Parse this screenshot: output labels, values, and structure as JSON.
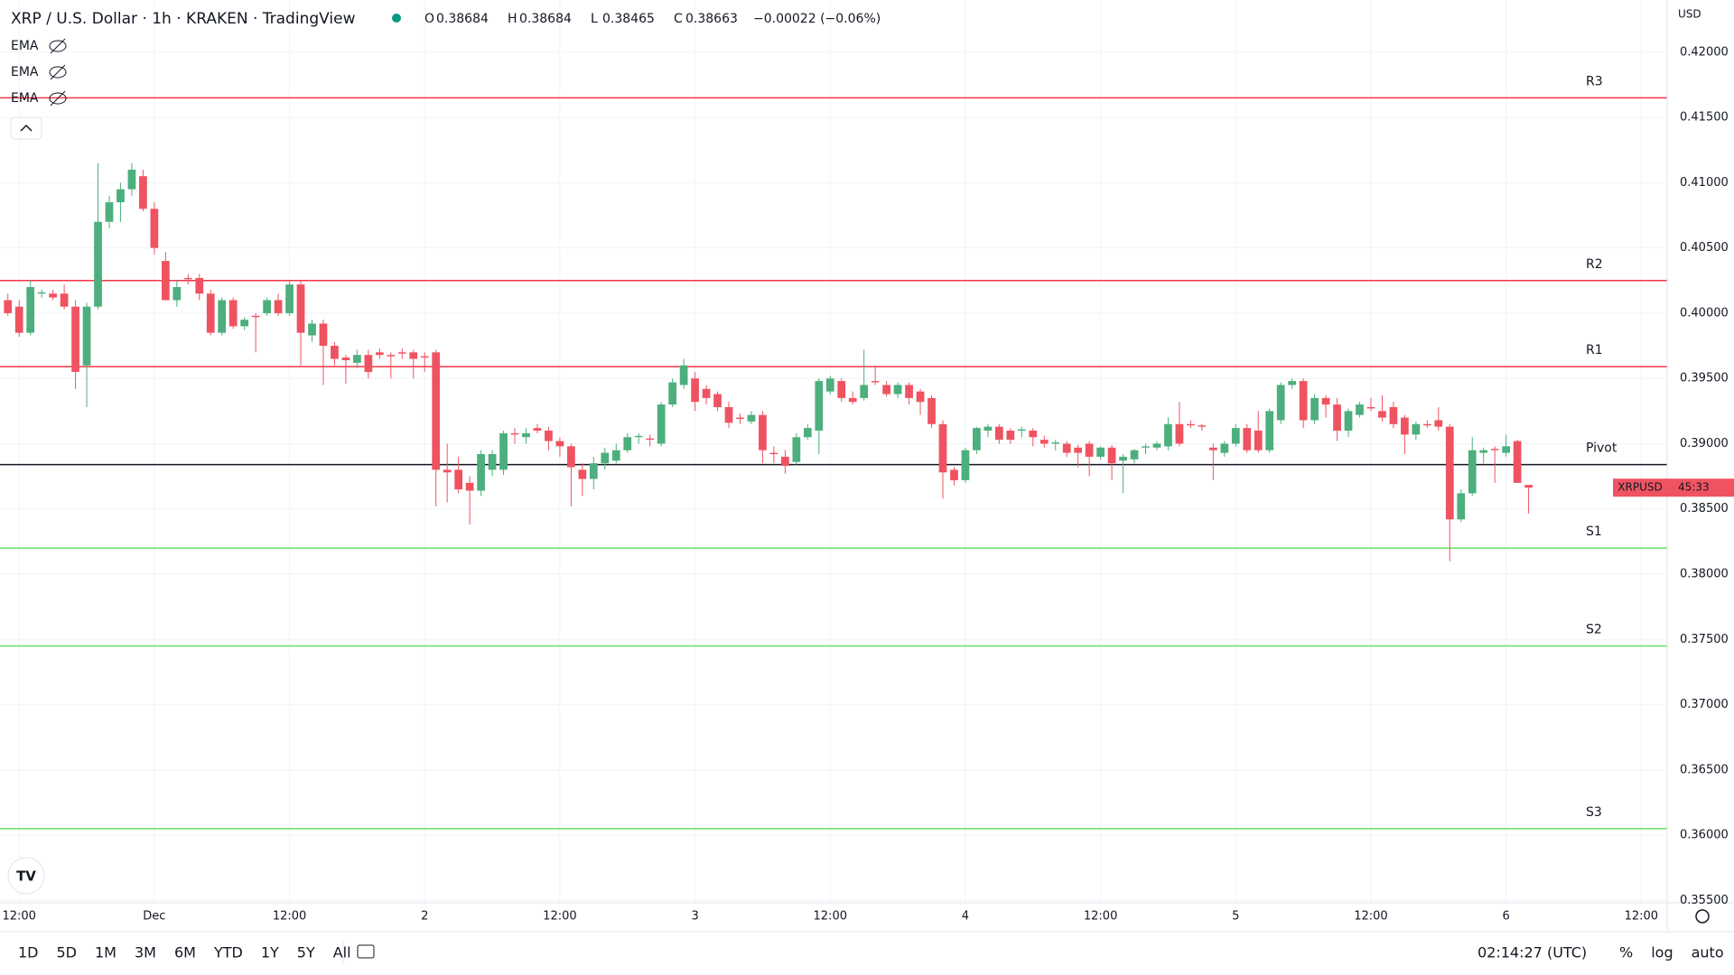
{
  "header": {
    "symbol": "XRP / U.S. Dollar · 1h · KRAKEN · TradingView",
    "ohlc": [
      {
        "label": "O",
        "value": "0.38684"
      },
      {
        "label": "H",
        "value": "0.38684"
      },
      {
        "label": "L",
        "value": "0.38465"
      },
      {
        "label": "C",
        "value": "0.38663"
      }
    ],
    "change": "−0.00022 (−0.06%)",
    "indicators": [
      "EMA",
      "EMA",
      "EMA"
    ]
  },
  "chart_data": {
    "type": "candlestick",
    "currency": "USD",
    "symbol_tag": "XRPUSD",
    "countdown": "45:33",
    "up_color": "#4caf7d",
    "down_color": "#ef5361",
    "grid": true,
    "xlim": [
      -0.7,
      147.3
    ],
    "xticks": [
      {
        "value": 1,
        "label": "12:00"
      },
      {
        "value": 13,
        "label": "Dec"
      },
      {
        "value": 25,
        "label": "12:00"
      },
      {
        "value": 37,
        "label": "2"
      },
      {
        "value": 49,
        "label": "12:00"
      },
      {
        "value": 61,
        "label": "3"
      },
      {
        "value": 73,
        "label": "12:00"
      },
      {
        "value": 85,
        "label": "4"
      },
      {
        "value": 97,
        "label": "12:00"
      },
      {
        "value": 109,
        "label": "5"
      },
      {
        "value": 121,
        "label": "12:00"
      },
      {
        "value": 133,
        "label": "6"
      },
      {
        "value": 145,
        "label": "12:00"
      }
    ],
    "ylim": [
      0.35482,
      0.424
    ],
    "yticks": [
      {
        "value": 0.355,
        "label": "0.35500"
      },
      {
        "value": 0.36,
        "label": "0.36000"
      },
      {
        "value": 0.365,
        "label": "0.36500"
      },
      {
        "value": 0.37,
        "label": "0.37000"
      },
      {
        "value": 0.375,
        "label": "0.37500"
      },
      {
        "value": 0.38,
        "label": "0.38000"
      },
      {
        "value": 0.385,
        "label": "0.38500"
      },
      {
        "value": 0.39,
        "label": "0.39000"
      },
      {
        "value": 0.395,
        "label": "0.39500"
      },
      {
        "value": 0.4,
        "label": "0.40000"
      },
      {
        "value": 0.405,
        "label": "0.40500"
      },
      {
        "value": 0.41,
        "label": "0.41000"
      },
      {
        "value": 0.415,
        "label": "0.41500"
      },
      {
        "value": 0.42,
        "label": "0.42000"
      }
    ],
    "levels": [
      {
        "name": "R3",
        "value": 0.4165,
        "color": "#f23645"
      },
      {
        "name": "R2",
        "value": 0.4025,
        "color": "#f23645"
      },
      {
        "name": "R1",
        "value": 0.3959,
        "color": "#f23645"
      },
      {
        "name": "Pivot",
        "value": 0.3884,
        "color": "#131722"
      },
      {
        "name": "S1",
        "value": 0.382,
        "color": "#66dd66"
      },
      {
        "name": "S2",
        "value": 0.3745,
        "color": "#66dd66"
      },
      {
        "name": "S3",
        "value": 0.3605,
        "color": "#66dd66"
      }
    ],
    "candles": [
      [
        0.401,
        0.4015,
        0.3998,
        0.4
      ],
      [
        0.4005,
        0.401,
        0.3982,
        0.3985
      ],
      [
        0.3985,
        0.4025,
        0.3983,
        0.402
      ],
      [
        0.4015,
        0.4018,
        0.4012,
        0.4016
      ],
      [
        0.4015,
        0.4018,
        0.401,
        0.4012
      ],
      [
        0.4015,
        0.4022,
        0.4003,
        0.4005
      ],
      [
        0.4005,
        0.401,
        0.3942,
        0.3955
      ],
      [
        0.396,
        0.4008,
        0.3928,
        0.4005
      ],
      [
        0.4005,
        0.4115,
        0.4003,
        0.407
      ],
      [
        0.407,
        0.409,
        0.4065,
        0.4085
      ],
      [
        0.4085,
        0.41,
        0.407,
        0.4095
      ],
      [
        0.4095,
        0.4115,
        0.409,
        0.411
      ],
      [
        0.4105,
        0.411,
        0.4078,
        0.408
      ],
      [
        0.408,
        0.4085,
        0.4045,
        0.405
      ],
      [
        0.404,
        0.4047,
        0.401,
        0.401
      ],
      [
        0.401,
        0.4025,
        0.4005,
        0.402
      ],
      [
        0.4027,
        0.403,
        0.4022,
        0.4026
      ],
      [
        0.4027,
        0.403,
        0.401,
        0.4015
      ],
      [
        0.4015,
        0.4018,
        0.3983,
        0.3985
      ],
      [
        0.3985,
        0.4012,
        0.3983,
        0.401
      ],
      [
        0.401,
        0.4012,
        0.3988,
        0.399
      ],
      [
        0.399,
        0.3997,
        0.3987,
        0.3995
      ],
      [
        0.3998,
        0.4,
        0.397,
        0.3997
      ],
      [
        0.4,
        0.4012,
        0.3998,
        0.401
      ],
      [
        0.401,
        0.4015,
        0.3998,
        0.4
      ],
      [
        0.4,
        0.4025,
        0.3998,
        0.4022
      ],
      [
        0.4022,
        0.4025,
        0.396,
        0.3985
      ],
      [
        0.3983,
        0.3995,
        0.3978,
        0.3992
      ],
      [
        0.3992,
        0.3995,
        0.3945,
        0.3975
      ],
      [
        0.3975,
        0.3978,
        0.396,
        0.3965
      ],
      [
        0.3966,
        0.3968,
        0.3946,
        0.3964
      ],
      [
        0.3962,
        0.3972,
        0.3958,
        0.3968
      ],
      [
        0.3968,
        0.3972,
        0.395,
        0.3955
      ],
      [
        0.397,
        0.3973,
        0.3965,
        0.3968
      ],
      [
        0.3968,
        0.397,
        0.395,
        0.3967
      ],
      [
        0.397,
        0.3973,
        0.3965,
        0.3969
      ],
      [
        0.397,
        0.3972,
        0.395,
        0.3965
      ],
      [
        0.3967,
        0.397,
        0.3955,
        0.3966
      ],
      [
        0.397,
        0.3972,
        0.3852,
        0.388
      ],
      [
        0.388,
        0.39,
        0.3855,
        0.3878
      ],
      [
        0.388,
        0.389,
        0.3862,
        0.3865
      ],
      [
        0.387,
        0.3875,
        0.3838,
        0.3864
      ],
      [
        0.3864,
        0.3895,
        0.386,
        0.3892
      ],
      [
        0.388,
        0.3895,
        0.3875,
        0.3892
      ],
      [
        0.388,
        0.391,
        0.3876,
        0.3908
      ],
      [
        0.3908,
        0.3912,
        0.39,
        0.3907
      ],
      [
        0.3905,
        0.3912,
        0.39,
        0.3908
      ],
      [
        0.3912,
        0.3915,
        0.3908,
        0.391
      ],
      [
        0.391,
        0.3913,
        0.3895,
        0.3902
      ],
      [
        0.3902,
        0.3905,
        0.389,
        0.3898
      ],
      [
        0.3898,
        0.39,
        0.3852,
        0.3882
      ],
      [
        0.388,
        0.3885,
        0.386,
        0.3873
      ],
      [
        0.3873,
        0.389,
        0.3865,
        0.3885
      ],
      [
        0.3885,
        0.3897,
        0.388,
        0.3893
      ],
      [
        0.3887,
        0.39,
        0.3885,
        0.3895
      ],
      [
        0.3895,
        0.3908,
        0.3893,
        0.3905
      ],
      [
        0.3905,
        0.3908,
        0.39,
        0.3906
      ],
      [
        0.3904,
        0.3907,
        0.3898,
        0.3903
      ],
      [
        0.39,
        0.3932,
        0.3898,
        0.393
      ],
      [
        0.393,
        0.395,
        0.3928,
        0.3947
      ],
      [
        0.3945,
        0.3965,
        0.3942,
        0.396
      ],
      [
        0.395,
        0.3955,
        0.3925,
        0.3932
      ],
      [
        0.3942,
        0.3945,
        0.393,
        0.3935
      ],
      [
        0.3938,
        0.394,
        0.3925,
        0.3928
      ],
      [
        0.3928,
        0.3932,
        0.3912,
        0.3916
      ],
      [
        0.392,
        0.3923,
        0.3915,
        0.3919
      ],
      [
        0.3917,
        0.3925,
        0.3915,
        0.3922
      ],
      [
        0.3922,
        0.3925,
        0.3885,
        0.3895
      ],
      [
        0.3893,
        0.3898,
        0.3885,
        0.3892
      ],
      [
        0.389,
        0.3895,
        0.3877,
        0.3883
      ],
      [
        0.3886,
        0.3908,
        0.3884,
        0.3905
      ],
      [
        0.3905,
        0.3915,
        0.3903,
        0.3912
      ],
      [
        0.391,
        0.395,
        0.3892,
        0.3948
      ],
      [
        0.394,
        0.3952,
        0.3938,
        0.395
      ],
      [
        0.3948,
        0.395,
        0.3932,
        0.3935
      ],
      [
        0.3935,
        0.394,
        0.393,
        0.3932
      ],
      [
        0.3935,
        0.3972,
        0.3933,
        0.3945
      ],
      [
        0.3948,
        0.396,
        0.3945,
        0.3947
      ],
      [
        0.3945,
        0.3948,
        0.3936,
        0.3938
      ],
      [
        0.3938,
        0.3947,
        0.3935,
        0.3945
      ],
      [
        0.3945,
        0.3947,
        0.393,
        0.3935
      ],
      [
        0.394,
        0.3942,
        0.3922,
        0.3932
      ],
      [
        0.3935,
        0.3937,
        0.3912,
        0.3915
      ],
      [
        0.3915,
        0.3918,
        0.3858,
        0.3878
      ],
      [
        0.388,
        0.3882,
        0.3868,
        0.3872
      ],
      [
        0.3872,
        0.3897,
        0.387,
        0.3895
      ],
      [
        0.3895,
        0.3913,
        0.3892,
        0.3912
      ],
      [
        0.391,
        0.3915,
        0.3905,
        0.3913
      ],
      [
        0.3913,
        0.3915,
        0.39,
        0.3903
      ],
      [
        0.391,
        0.3912,
        0.39,
        0.3903
      ],
      [
        0.391,
        0.3913,
        0.3905,
        0.3911
      ],
      [
        0.391,
        0.3912,
        0.3898,
        0.3905
      ],
      [
        0.3903,
        0.3906,
        0.3897,
        0.39
      ],
      [
        0.39,
        0.3903,
        0.3895,
        0.3901
      ],
      [
        0.39,
        0.3902,
        0.389,
        0.3893
      ],
      [
        0.3897,
        0.3899,
        0.3882,
        0.3893
      ],
      [
        0.39,
        0.3902,
        0.3875,
        0.389
      ],
      [
        0.389,
        0.3898,
        0.3888,
        0.3897
      ],
      [
        0.3897,
        0.3899,
        0.3872,
        0.3885
      ],
      [
        0.3887,
        0.3892,
        0.3862,
        0.389
      ],
      [
        0.3888,
        0.3896,
        0.3885,
        0.3895
      ],
      [
        0.3897,
        0.39,
        0.3892,
        0.3898
      ],
      [
        0.3897,
        0.3902,
        0.3895,
        0.39
      ],
      [
        0.3898,
        0.392,
        0.3895,
        0.3915
      ],
      [
        0.3915,
        0.3932,
        0.3898,
        0.39
      ],
      [
        0.3915,
        0.3918,
        0.3912,
        0.3914
      ],
      [
        0.3914,
        0.3915,
        0.391,
        0.3913
      ],
      [
        0.3897,
        0.39,
        0.3872,
        0.3895
      ],
      [
        0.3893,
        0.3902,
        0.389,
        0.39
      ],
      [
        0.39,
        0.3915,
        0.3898,
        0.3912
      ],
      [
        0.3912,
        0.3915,
        0.3893,
        0.3895
      ],
      [
        0.391,
        0.3925,
        0.3893,
        0.3895
      ],
      [
        0.3895,
        0.3927,
        0.3893,
        0.3925
      ],
      [
        0.3918,
        0.3947,
        0.3915,
        0.3945
      ],
      [
        0.3945,
        0.395,
        0.3942,
        0.3948
      ],
      [
        0.3948,
        0.395,
        0.3912,
        0.3918
      ],
      [
        0.3918,
        0.3938,
        0.3915,
        0.3935
      ],
      [
        0.3935,
        0.3937,
        0.392,
        0.393
      ],
      [
        0.393,
        0.3935,
        0.3902,
        0.391
      ],
      [
        0.391,
        0.3927,
        0.3905,
        0.3925
      ],
      [
        0.3922,
        0.3932,
        0.392,
        0.393
      ],
      [
        0.3928,
        0.3935,
        0.3925,
        0.3927
      ],
      [
        0.3925,
        0.3937,
        0.3917,
        0.392
      ],
      [
        0.3928,
        0.3932,
        0.3912,
        0.3915
      ],
      [
        0.392,
        0.3922,
        0.3892,
        0.3907
      ],
      [
        0.3907,
        0.3917,
        0.3903,
        0.3915
      ],
      [
        0.3915,
        0.3918,
        0.3912,
        0.3914
      ],
      [
        0.3918,
        0.3928,
        0.391,
        0.3913
      ],
      [
        0.3913,
        0.3915,
        0.381,
        0.3842
      ],
      [
        0.3842,
        0.3865,
        0.384,
        0.3862
      ],
      [
        0.3862,
        0.3905,
        0.386,
        0.3895
      ],
      [
        0.3893,
        0.3897,
        0.3885,
        0.3895
      ],
      [
        0.3896,
        0.3898,
        0.387,
        0.3895
      ],
      [
        0.3893,
        0.3907,
        0.389,
        0.3898
      ],
      [
        0.3902,
        0.3903,
        0.387,
        0.387
      ],
      [
        0.38684,
        0.38684,
        0.38465,
        0.38663
      ]
    ]
  },
  "toolbar": {
    "ranges": [
      "1D",
      "5D",
      "1M",
      "3M",
      "6M",
      "YTD",
      "1Y",
      "5Y",
      "All"
    ],
    "clock": "02:14:27 (UTC)",
    "options": [
      "%",
      "log",
      "auto"
    ]
  }
}
